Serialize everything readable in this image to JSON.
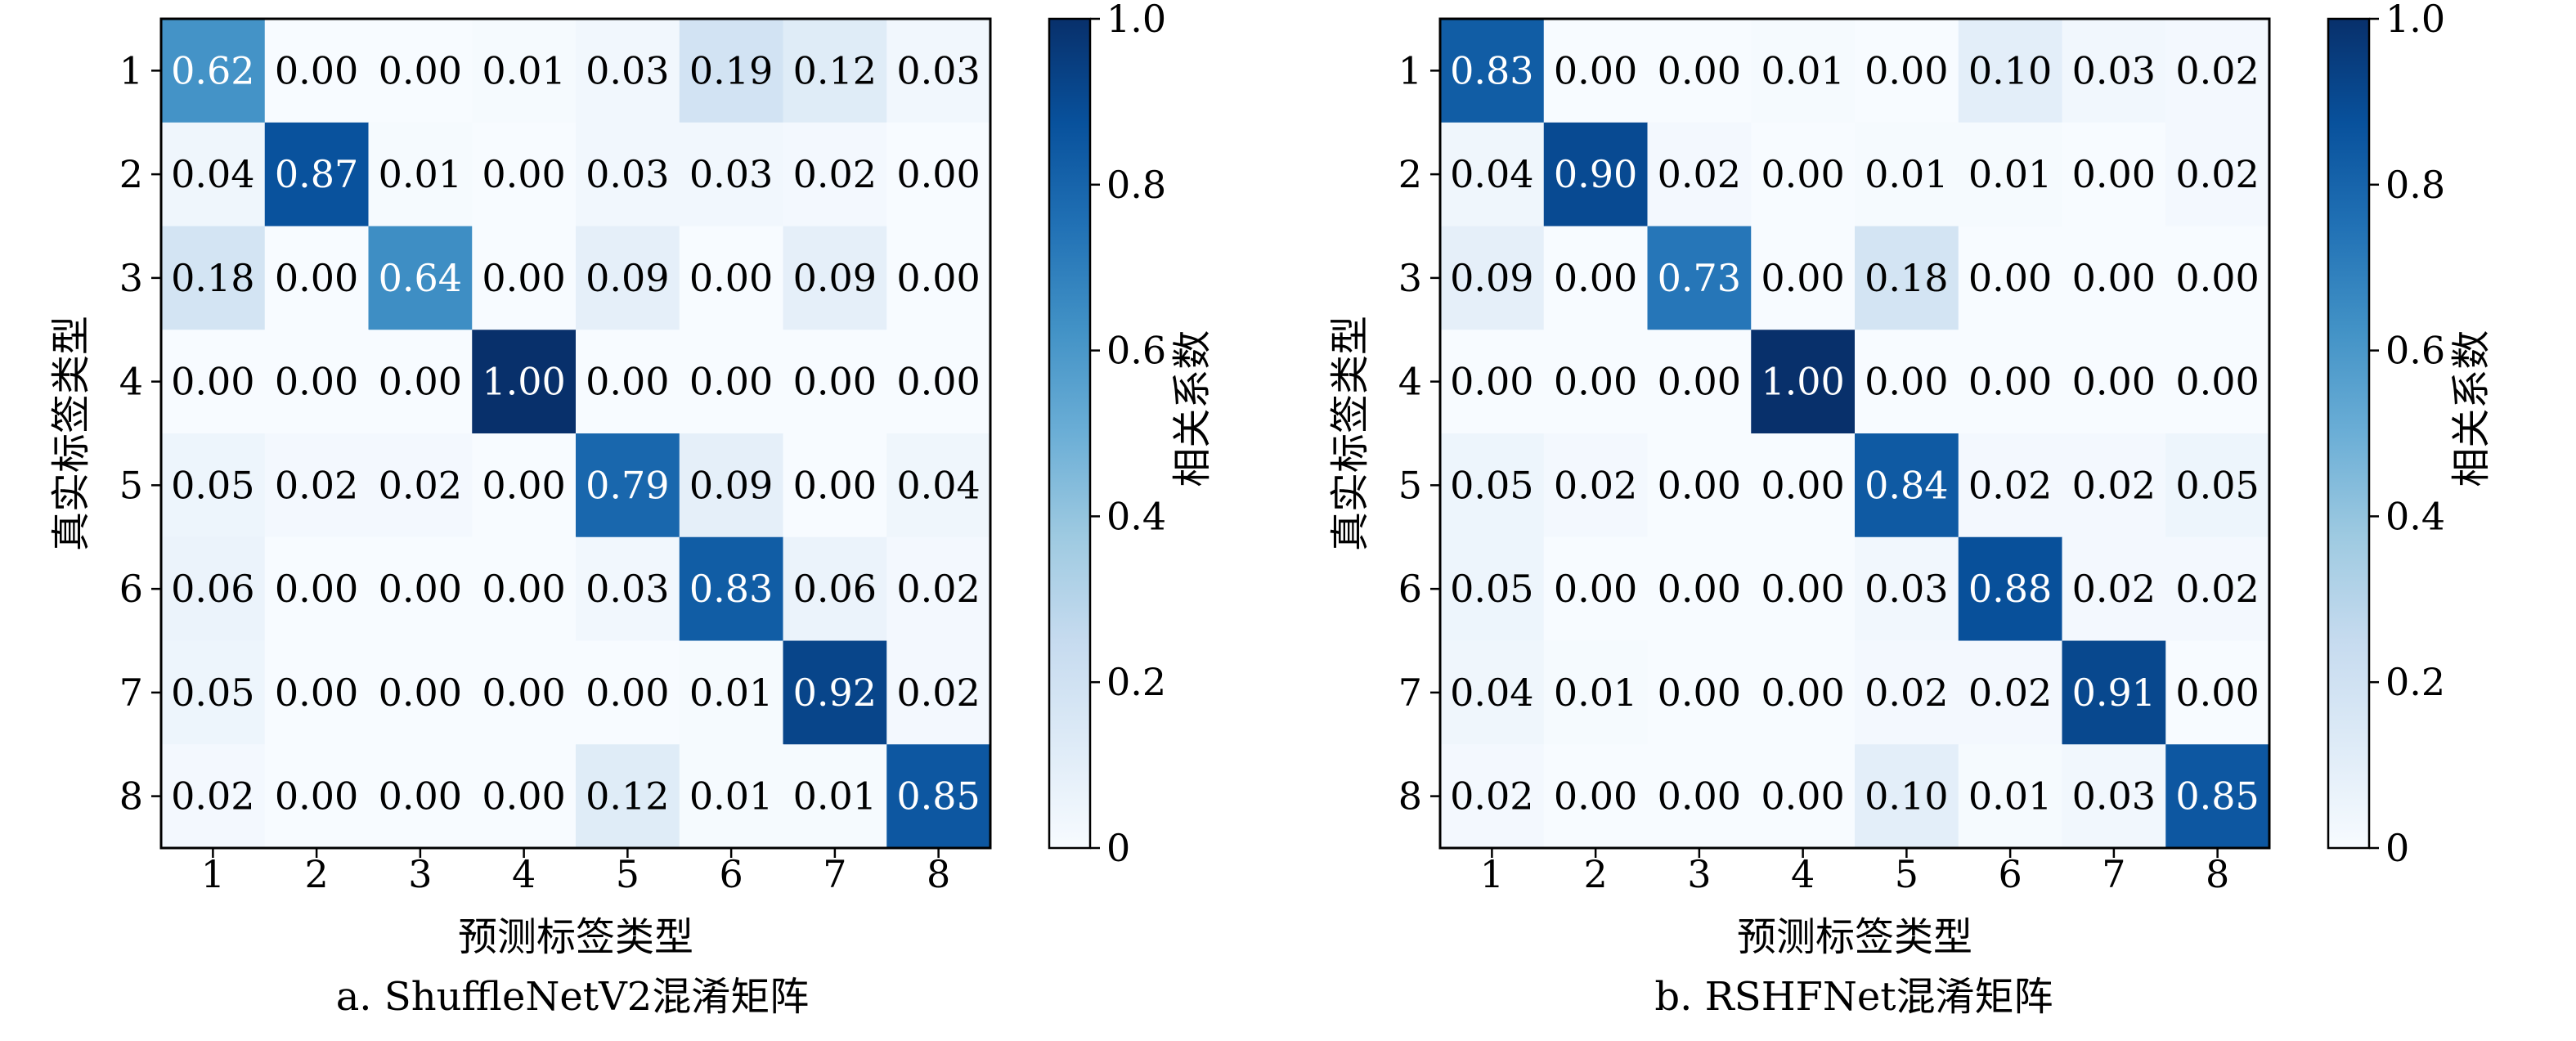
{
  "chart_data": [
    {
      "type": "heatmap",
      "caption": "a. ShuffleNetV2混淆矩阵",
      "xlabel": "预测标签类型",
      "ylabel": "真实标签类型",
      "x_categories": [
        "1",
        "2",
        "3",
        "4",
        "5",
        "6",
        "7",
        "8"
      ],
      "y_categories": [
        "1",
        "2",
        "3",
        "4",
        "5",
        "6",
        "7",
        "8"
      ],
      "matrix": [
        [
          "0.62",
          "0.00",
          "0.00",
          "0.01",
          "0.03",
          "0.19",
          "0.12",
          "0.03"
        ],
        [
          "0.04",
          "0.87",
          "0.01",
          "0.00",
          "0.03",
          "0.03",
          "0.02",
          "0.00"
        ],
        [
          "0.18",
          "0.00",
          "0.64",
          "0.00",
          "0.09",
          "0.00",
          "0.09",
          "0.00"
        ],
        [
          "0.00",
          "0.00",
          "0.00",
          "1.00",
          "0.00",
          "0.00",
          "0.00",
          "0.00"
        ],
        [
          "0.05",
          "0.02",
          "0.02",
          "0.00",
          "0.79",
          "0.09",
          "0.00",
          "0.04"
        ],
        [
          "0.06",
          "0.00",
          "0.00",
          "0.00",
          "0.03",
          "0.83",
          "0.06",
          "0.02"
        ],
        [
          "0.05",
          "0.00",
          "0.00",
          "0.00",
          "0.00",
          "0.01",
          "0.92",
          "0.02"
        ],
        [
          "0.02",
          "0.00",
          "0.00",
          "0.00",
          "0.12",
          "0.01",
          "0.01",
          "0.85"
        ]
      ],
      "colorbar": {
        "label": "相关系数",
        "range": [
          0,
          1
        ],
        "ticks": [
          "0",
          "0.2",
          "0.4",
          "0.6",
          "0.8",
          "1.0"
        ],
        "colormap": "Blues"
      }
    },
    {
      "type": "heatmap",
      "caption": "b. RSHFNet混淆矩阵",
      "xlabel": "预测标签类型",
      "ylabel": "真实标签类型",
      "x_categories": [
        "1",
        "2",
        "3",
        "4",
        "5",
        "6",
        "7",
        "8"
      ],
      "y_categories": [
        "1",
        "2",
        "3",
        "4",
        "5",
        "6",
        "7",
        "8"
      ],
      "matrix": [
        [
          "0.83",
          "0.00",
          "0.00",
          "0.01",
          "0.00",
          "0.10",
          "0.03",
          "0.02"
        ],
        [
          "0.04",
          "0.90",
          "0.02",
          "0.00",
          "0.01",
          "0.01",
          "0.00",
          "0.02"
        ],
        [
          "0.09",
          "0.00",
          "0.73",
          "0.00",
          "0.18",
          "0.00",
          "0.00",
          "0.00"
        ],
        [
          "0.00",
          "0.00",
          "0.00",
          "1.00",
          "0.00",
          "0.00",
          "0.00",
          "0.00"
        ],
        [
          "0.05",
          "0.02",
          "0.00",
          "0.00",
          "0.84",
          "0.02",
          "0.02",
          "0.05"
        ],
        [
          "0.05",
          "0.00",
          "0.00",
          "0.00",
          "0.03",
          "0.88",
          "0.02",
          "0.02"
        ],
        [
          "0.04",
          "0.01",
          "0.00",
          "0.00",
          "0.02",
          "0.02",
          "0.91",
          "0.00"
        ],
        [
          "0.02",
          "0.00",
          "0.00",
          "0.00",
          "0.10",
          "0.01",
          "0.03",
          "0.85"
        ]
      ],
      "colorbar": {
        "label": "相关系数",
        "range": [
          0,
          1
        ],
        "ticks": [
          "0",
          "0.2",
          "0.4",
          "0.6",
          "0.8",
          "1.0"
        ],
        "colormap": "Blues"
      }
    }
  ]
}
